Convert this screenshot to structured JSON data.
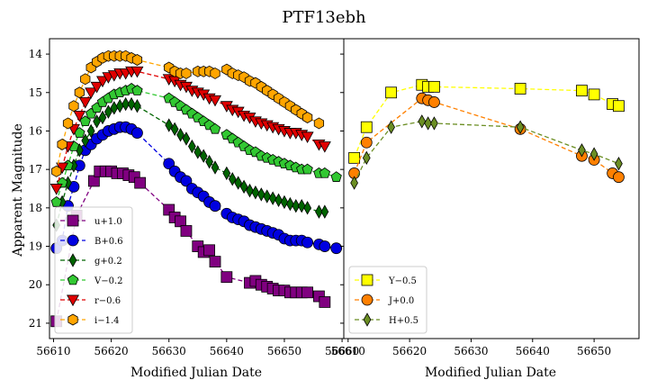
{
  "chart_data": [
    {
      "type": "scatter",
      "title": "PTF13ebh",
      "xlabel": "Modified Julian Date",
      "ylabel": "Apparent Magnitude",
      "xlim": [
        56609.3,
        56660.3
      ],
      "ylim": [
        21.4,
        13.6
      ],
      "y_inverted": true,
      "xticks": [
        56610,
        56620,
        56630,
        56640,
        56650,
        56660
      ],
      "yticks": [
        14,
        15,
        16,
        17,
        18,
        19,
        20,
        21
      ],
      "grid": false,
      "legend_position": "lower-left",
      "series": [
        {
          "name": "u+1.0",
          "color": "#800080",
          "marker": "square",
          "x": [
            56610.5,
            56614,
            56617,
            56618,
            56619,
            56620,
            56621,
            56622,
            56623,
            56624,
            56625,
            56630,
            56631,
            56632,
            56633,
            56635,
            56636,
            56637,
            56638,
            56640,
            56644,
            56645,
            56646,
            56647,
            56648,
            56649,
            56650,
            56651,
            56652,
            56653,
            56654,
            56656,
            56657
          ],
          "y": [
            20.95,
            18.2,
            17.3,
            17.05,
            17.05,
            17.05,
            17.1,
            17.1,
            17.15,
            17.2,
            17.35,
            18.05,
            18.25,
            18.35,
            18.6,
            19.0,
            19.15,
            19.1,
            19.4,
            19.8,
            19.95,
            19.9,
            20.0,
            20.05,
            20.1,
            20.15,
            20.15,
            20.2,
            20.2,
            20.2,
            20.2,
            20.3,
            20.45
          ]
        },
        {
          "name": "B+0.6",
          "color": "#0000e0",
          "marker": "circle",
          "x": [
            56610.5,
            56611.5,
            56612.5,
            56613.5,
            56614.5,
            56615.5,
            56616.5,
            56617.5,
            56618.5,
            56619.5,
            56620.5,
            56621.5,
            56622.5,
            56623.5,
            56624.5,
            56630,
            56631,
            56632,
            56633,
            56634,
            56635,
            56636,
            56637,
            56638,
            56640,
            56641,
            56642,
            56643,
            56644,
            56645,
            56646,
            56647,
            56648,
            56649,
            56650,
            56651,
            56652,
            56653,
            56654,
            56656,
            56657,
            56659
          ],
          "y": [
            19.05,
            18.85,
            17.95,
            17.45,
            16.9,
            16.5,
            16.35,
            16.2,
            16.1,
            16.0,
            15.95,
            15.9,
            15.9,
            15.95,
            16.05,
            16.85,
            17.05,
            17.2,
            17.3,
            17.5,
            17.6,
            17.7,
            17.85,
            17.95,
            18.15,
            18.25,
            18.3,
            18.35,
            18.45,
            18.5,
            18.55,
            18.6,
            18.65,
            18.7,
            18.8,
            18.85,
            18.85,
            18.85,
            18.9,
            18.95,
            19.0,
            19.05
          ]
        },
        {
          "name": "g+0.2",
          "color": "#006400",
          "marker": "thin_diamond",
          "x": [
            56610.5,
            56611.5,
            56612.5,
            56613.5,
            56614.5,
            56615.5,
            56616.5,
            56617.5,
            56618.5,
            56619.5,
            56620.5,
            56621.5,
            56622.5,
            56623.5,
            56624.5,
            56630,
            56631,
            56632,
            56633,
            56634,
            56635,
            56636,
            56637,
            56638,
            56640,
            56641,
            56642,
            56643,
            56644,
            56645,
            56646,
            56647,
            56648,
            56649,
            56650,
            56651,
            56652,
            56653,
            56654,
            56656,
            56657
          ],
          "y": [
            18.45,
            17.85,
            17.35,
            16.9,
            16.5,
            16.25,
            16.0,
            15.75,
            15.65,
            15.5,
            15.4,
            15.35,
            15.3,
            15.3,
            15.35,
            15.85,
            15.95,
            16.1,
            16.2,
            16.4,
            16.55,
            16.65,
            16.8,
            16.95,
            17.1,
            17.25,
            17.35,
            17.45,
            17.55,
            17.6,
            17.65,
            17.7,
            17.75,
            17.8,
            17.85,
            17.9,
            17.95,
            17.95,
            18.0,
            18.1,
            18.1
          ]
        },
        {
          "name": "V−0.2",
          "color": "#32c832",
          "marker": "pentagon",
          "x": [
            56610.5,
            56611.5,
            56612.5,
            56613.5,
            56614.5,
            56615.5,
            56616.5,
            56617.5,
            56618.5,
            56619.5,
            56620.5,
            56621.5,
            56622.5,
            56623.5,
            56624.5,
            56630,
            56631,
            56632,
            56633,
            56634,
            56635,
            56636,
            56637,
            56638,
            56640,
            56641,
            56642,
            56643,
            56644,
            56645,
            56646,
            56647,
            56648,
            56649,
            56650,
            56651,
            56652,
            56653,
            56654,
            56656,
            56657,
            56659
          ],
          "y": [
            17.85,
            17.35,
            16.9,
            16.4,
            16.05,
            15.75,
            15.55,
            15.4,
            15.25,
            15.15,
            15.05,
            15.0,
            14.95,
            14.9,
            14.95,
            15.15,
            15.25,
            15.35,
            15.45,
            15.55,
            15.65,
            15.75,
            15.85,
            15.95,
            16.1,
            16.2,
            16.3,
            16.4,
            16.5,
            16.55,
            16.65,
            16.7,
            16.75,
            16.8,
            16.85,
            16.9,
            16.95,
            17.0,
            17.0,
            17.1,
            17.1,
            17.2
          ]
        },
        {
          "name": "r−0.6",
          "color": "#e00000",
          "marker": "triangle_down",
          "x": [
            56610.5,
            56611.5,
            56612.5,
            56613.5,
            56614.5,
            56615.5,
            56616.5,
            56617.5,
            56618.5,
            56619.5,
            56620.5,
            56621.5,
            56622.5,
            56623.5,
            56624.5,
            56630,
            56631,
            56632,
            56633,
            56634,
            56635,
            56636,
            56637,
            56638,
            56640,
            56641,
            56642,
            56643,
            56644,
            56645,
            56646,
            56647,
            56648,
            56649,
            56650,
            56651,
            56652,
            56653,
            56654,
            56656,
            56657
          ],
          "y": [
            17.5,
            16.95,
            16.4,
            15.95,
            15.6,
            15.25,
            15.0,
            14.85,
            14.7,
            14.6,
            14.55,
            14.5,
            14.5,
            14.45,
            14.45,
            14.65,
            14.7,
            14.8,
            14.85,
            14.95,
            15.0,
            15.05,
            15.15,
            15.2,
            15.35,
            15.45,
            15.5,
            15.6,
            15.65,
            15.75,
            15.8,
            15.85,
            15.9,
            15.95,
            16.0,
            16.05,
            16.05,
            16.1,
            16.15,
            16.35,
            16.4
          ]
        },
        {
          "name": "i−1.4",
          "color": "#ffa500",
          "marker": "hexagon",
          "x": [
            56610.5,
            56611.5,
            56612.5,
            56613.5,
            56614.5,
            56615.5,
            56616.5,
            56617.5,
            56618.5,
            56619.5,
            56620.5,
            56621.5,
            56622.5,
            56623.5,
            56624.5,
            56630,
            56631,
            56632,
            56633,
            56635,
            56636,
            56637,
            56638,
            56640,
            56641,
            56642,
            56643,
            56644,
            56645,
            56646,
            56647,
            56648,
            56649,
            56650,
            56651,
            56652,
            56653,
            56654,
            56656
          ],
          "y": [
            17.05,
            16.35,
            15.8,
            15.35,
            15.0,
            14.65,
            14.35,
            14.2,
            14.1,
            14.05,
            14.05,
            14.05,
            14.05,
            14.1,
            14.15,
            14.35,
            14.45,
            14.5,
            14.5,
            14.45,
            14.45,
            14.45,
            14.5,
            14.4,
            14.5,
            14.55,
            14.6,
            14.7,
            14.75,
            14.85,
            14.95,
            15.05,
            15.15,
            15.25,
            15.35,
            15.45,
            15.55,
            15.65,
            15.8
          ]
        }
      ]
    },
    {
      "type": "scatter",
      "xlabel": "Modified Julian Date",
      "xlim": [
        56609.3,
        56657.3
      ],
      "ylim": [
        21.4,
        13.6
      ],
      "y_inverted": true,
      "shared_y": true,
      "xticks": [
        56610,
        56620,
        56630,
        56640,
        56650
      ],
      "xtick_labels": [
        "56610",
        "56620",
        "56630",
        "56640",
        "56650"
      ],
      "grid": false,
      "legend_position": "lower-left",
      "series": [
        {
          "name": "Y−0.5",
          "color": "#ffff00",
          "marker": "square",
          "x": [
            56611,
            56613,
            56617,
            56622,
            56623,
            56624,
            56638,
            56648,
            56650,
            56653,
            56654
          ],
          "y": [
            16.7,
            15.9,
            15.0,
            14.8,
            14.85,
            14.85,
            14.9,
            14.95,
            15.05,
            15.3,
            15.35
          ]
        },
        {
          "name": "J+0.0",
          "color": "#ff8000",
          "marker": "circle",
          "x": [
            56611,
            56613,
            56622,
            56623,
            56624,
            56638,
            56648,
            56650,
            56653,
            56654
          ],
          "y": [
            17.1,
            16.3,
            15.15,
            15.2,
            15.25,
            15.95,
            16.65,
            16.75,
            17.1,
            17.2
          ]
        },
        {
          "name": "H+0.5",
          "color": "#6b8e23",
          "marker": "thin_diamond",
          "x": [
            56611,
            56613,
            56617,
            56622,
            56623,
            56624,
            56638,
            56648,
            56650,
            56654
          ],
          "y": [
            17.35,
            16.7,
            15.9,
            15.75,
            15.8,
            15.8,
            15.9,
            16.5,
            16.6,
            16.85
          ]
        }
      ]
    }
  ]
}
